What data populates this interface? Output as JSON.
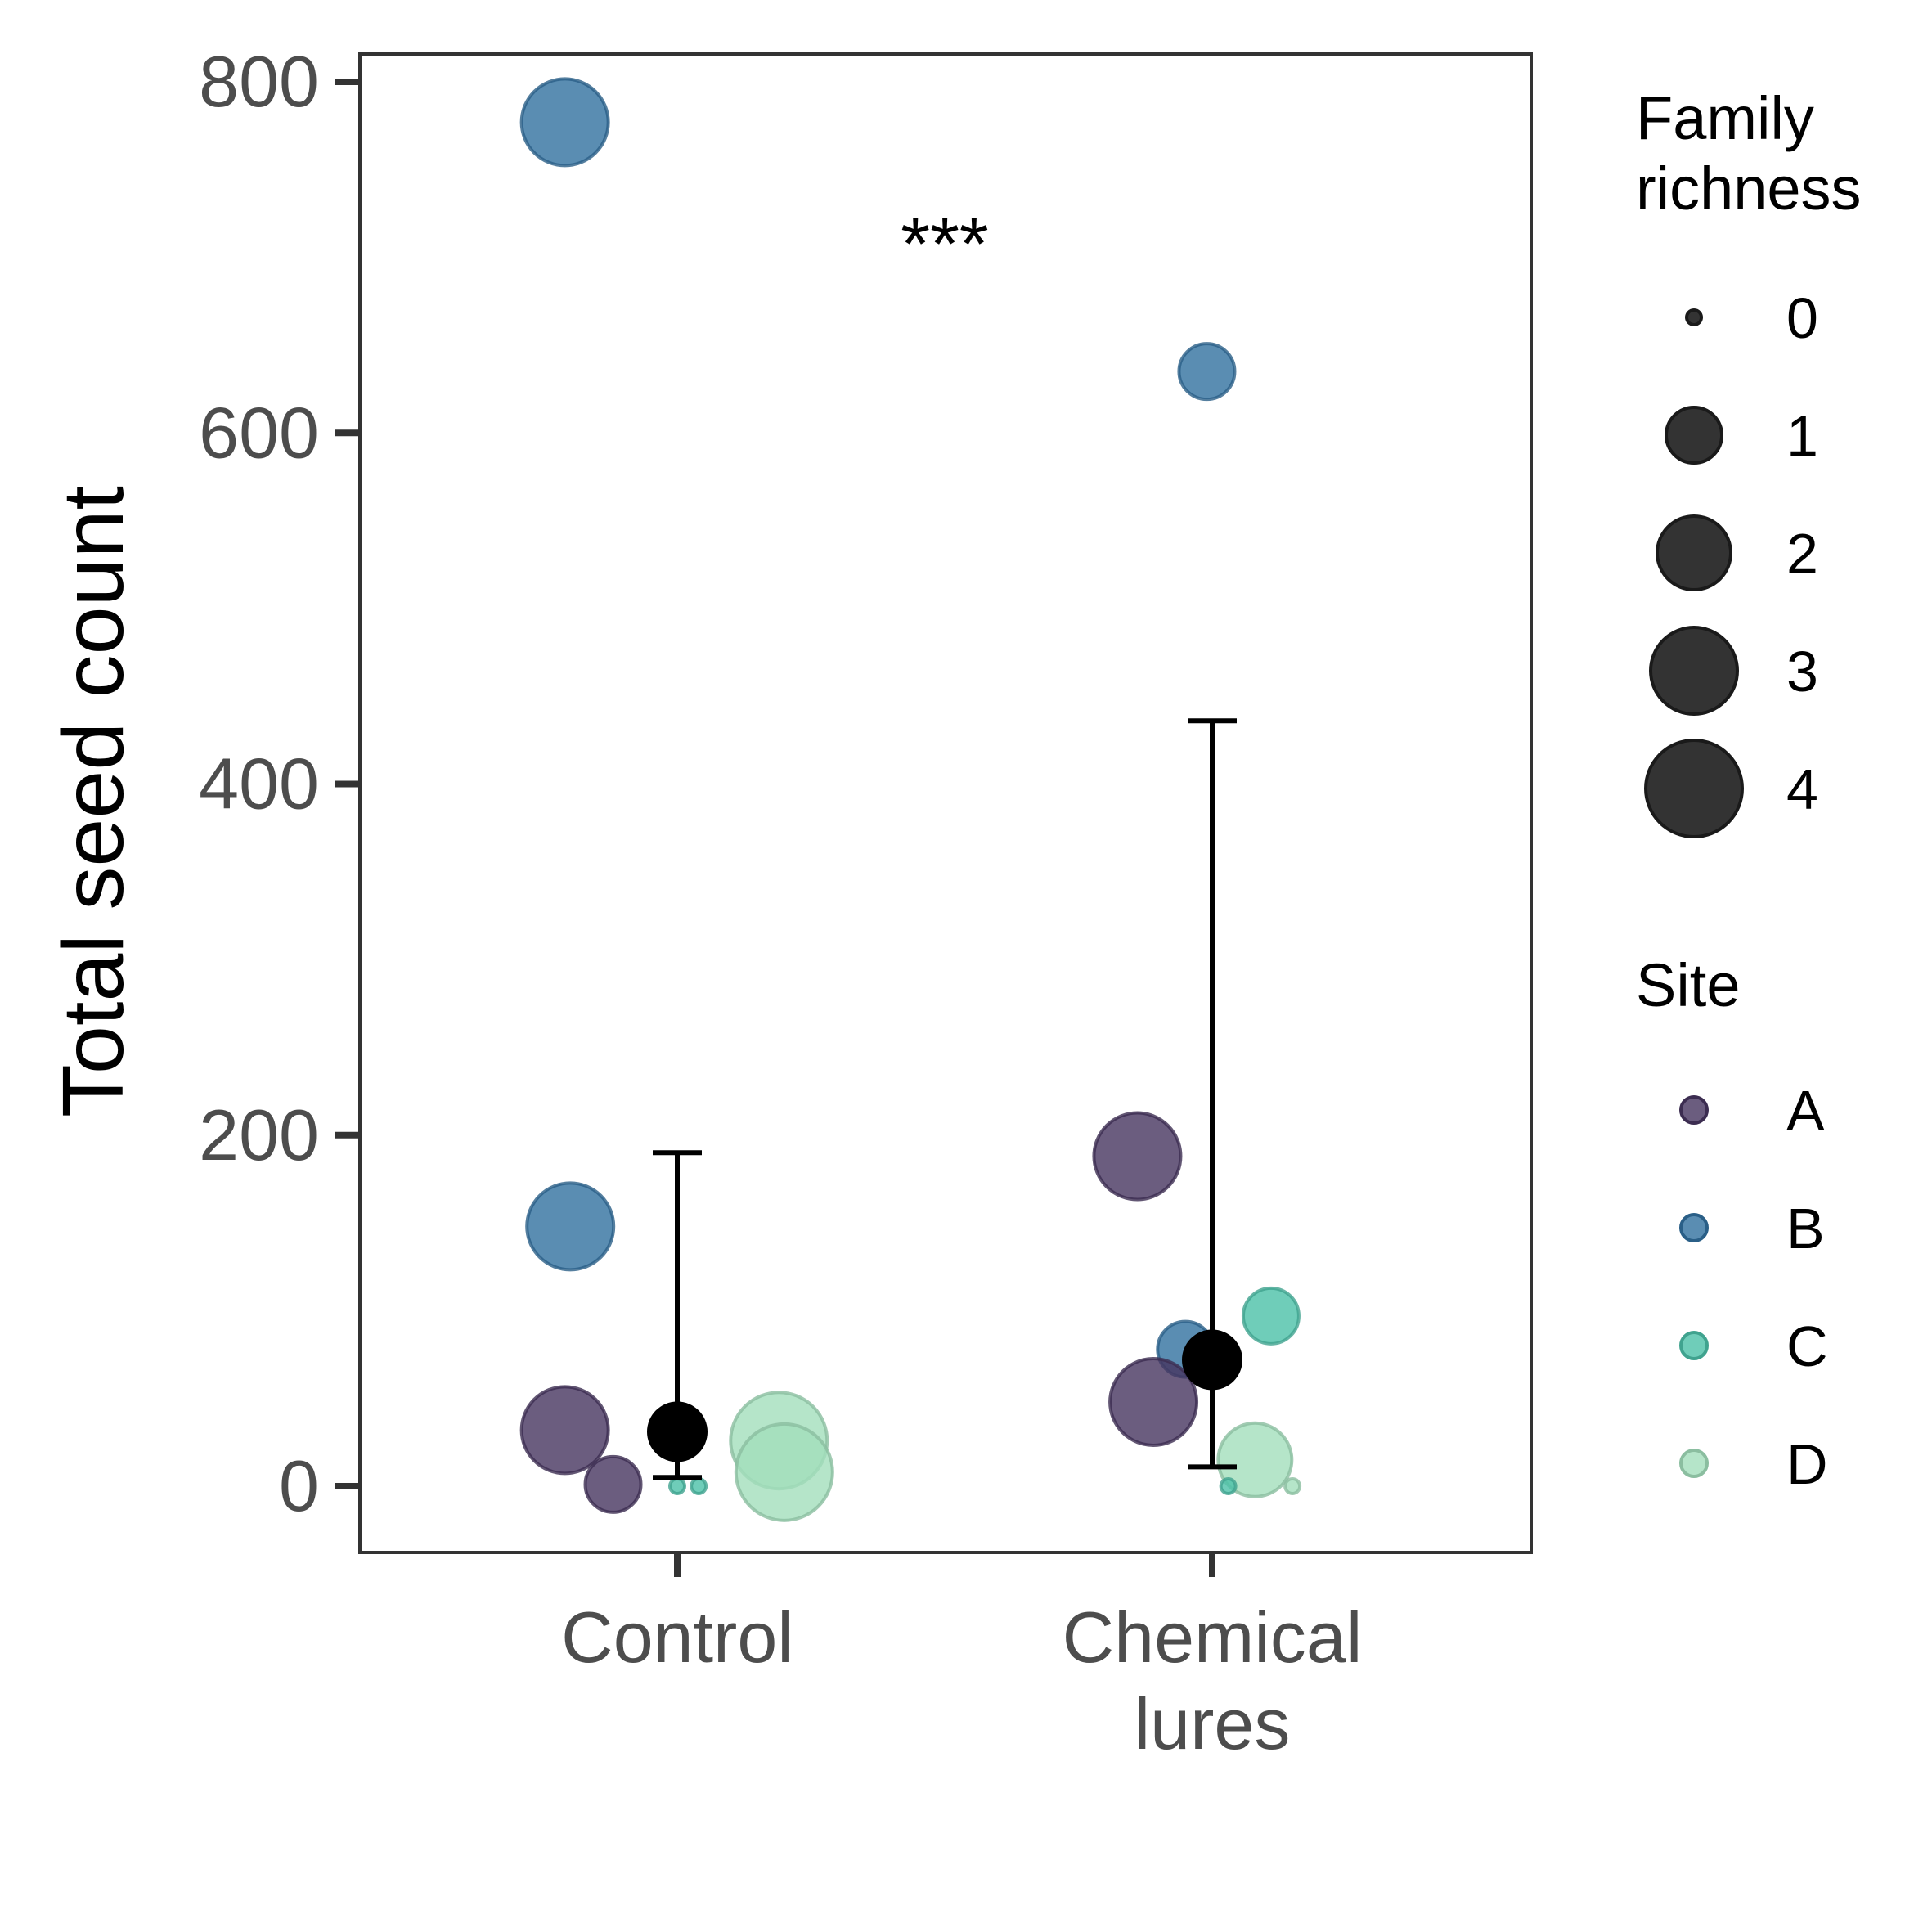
{
  "chart_data": {
    "type": "scatter",
    "ylabel": "Total seed count",
    "xlabel": "",
    "categories": [
      "Control",
      "Chemical\nlures"
    ],
    "y_ticks": [
      0,
      200,
      400,
      600,
      800
    ],
    "ylim": [
      -37,
      820
    ],
    "annotation": "***",
    "legend_size": {
      "title": "Family\nrichness",
      "levels": [
        0,
        1,
        2,
        3,
        4
      ]
    },
    "legend_site": {
      "title": "Site",
      "entries": [
        {
          "name": "A",
          "color": "#46355f"
        },
        {
          "name": "B",
          "color": "#31709f"
        },
        {
          "name": "C",
          "color": "#4bc0a8"
        },
        {
          "name": "D",
          "color": "#a3dfbc"
        }
      ]
    },
    "points": [
      {
        "category": 0,
        "offset": -0.21,
        "y": 777,
        "site": "B",
        "richness": 3
      },
      {
        "category": 0,
        "offset": -0.2,
        "y": 148,
        "site": "B",
        "richness": 3
      },
      {
        "category": 0,
        "offset": -0.21,
        "y": 32,
        "site": "A",
        "richness": 3
      },
      {
        "category": 0,
        "offset": -0.12,
        "y": 1,
        "site": "A",
        "richness": 1
      },
      {
        "category": 0,
        "offset": 0.0,
        "y": 0,
        "site": "C",
        "richness": 0
      },
      {
        "category": 0,
        "offset": 0.04,
        "y": 0,
        "site": "C",
        "richness": 0
      },
      {
        "category": 0,
        "offset": 0.19,
        "y": 26,
        "site": "D",
        "richness": 4
      },
      {
        "category": 0,
        "offset": 0.2,
        "y": 8,
        "site": "D",
        "richness": 4
      },
      {
        "category": 1,
        "offset": -0.01,
        "y": 635,
        "site": "B",
        "richness": 1
      },
      {
        "category": 1,
        "offset": -0.14,
        "y": 188,
        "site": "A",
        "richness": 3
      },
      {
        "category": 1,
        "offset": 0.11,
        "y": 97,
        "site": "C",
        "richness": 1
      },
      {
        "category": 1,
        "offset": -0.05,
        "y": 78,
        "site": "B",
        "richness": 1
      },
      {
        "category": 1,
        "offset": -0.11,
        "y": 48,
        "site": "A",
        "richness": 3
      },
      {
        "category": 1,
        "offset": 0.08,
        "y": 15,
        "site": "D",
        "richness": 2
      },
      {
        "category": 1,
        "offset": 0.03,
        "y": 0,
        "site": "C",
        "richness": 0
      },
      {
        "category": 1,
        "offset": 0.15,
        "y": 0,
        "site": "D",
        "richness": 0
      }
    ],
    "summary": [
      {
        "category": 0,
        "mean": 31,
        "lower": 5,
        "upper": 190
      },
      {
        "category": 1,
        "mean": 72,
        "lower": 11,
        "upper": 436
      }
    ]
  }
}
